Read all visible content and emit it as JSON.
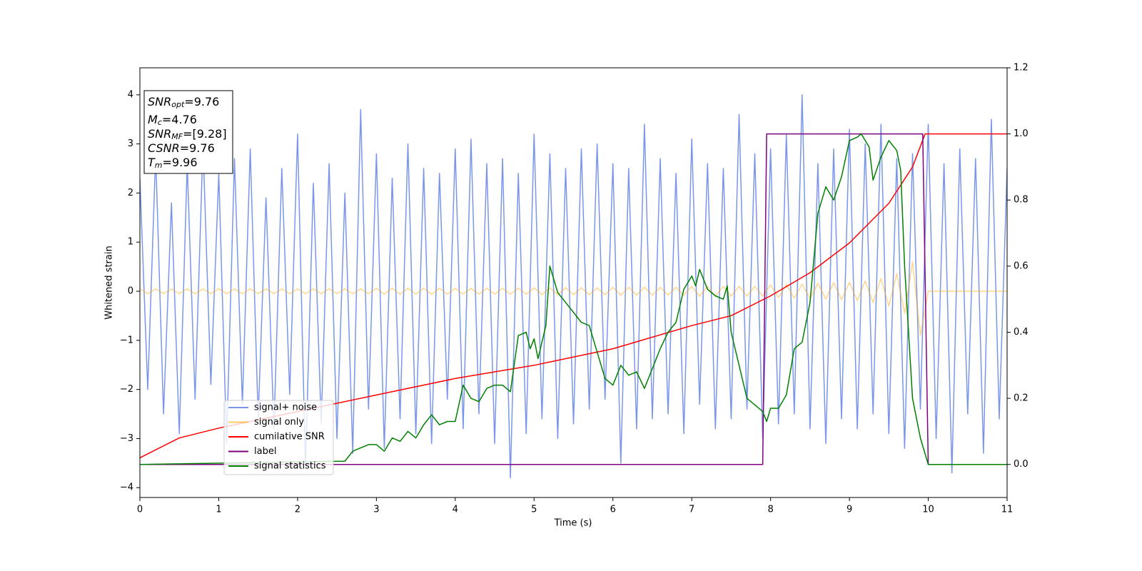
{
  "chart_data": {
    "type": "line",
    "xlabel": "Time (s)",
    "ylabel": "Whitened strain",
    "xlim": [
      0,
      11
    ],
    "ylim": [
      -4.2,
      4.55
    ],
    "y2lim": [
      -0.1,
      1.2
    ],
    "xticks": [
      0,
      1,
      2,
      3,
      4,
      5,
      6,
      7,
      8,
      9,
      10,
      11
    ],
    "yticks": [
      {
        "value": -4,
        "label": "−4"
      },
      {
        "value": -3,
        "label": "−3"
      },
      {
        "value": -2,
        "label": "−2"
      },
      {
        "value": -1,
        "label": "−1"
      },
      0,
      1,
      2,
      3,
      4
    ],
    "y2ticks": [
      {
        "value": 0,
        "label": "0.0"
      },
      {
        "value": 0.2,
        "label": "0.2"
      },
      {
        "value": 0.4,
        "label": "0.4"
      },
      {
        "value": 0.6,
        "label": "0.6"
      },
      {
        "value": 0.8,
        "label": "0.8"
      },
      {
        "value": 1.0,
        "label": "1.0"
      },
      {
        "value": 1.2,
        "label": "1.2"
      }
    ],
    "legend": "lower left",
    "annotation": [
      {
        "main": "SNR",
        "sub": "opt",
        "rest": "=9.76"
      },
      {
        "main": "M",
        "sub": "c",
        "rest": "=4.76"
      },
      {
        "main": "SNR",
        "sub": "MF",
        "rest": "=[9.28]"
      },
      {
        "main": "CSNR",
        "rest": "=9.76"
      },
      {
        "main": "T",
        "sub": "m",
        "rest": "=9.96"
      }
    ],
    "x": [
      0,
      0.1,
      0.2,
      0.3,
      0.4,
      0.5,
      0.6,
      0.7,
      0.8,
      0.9,
      1,
      1.1,
      1.2,
      1.3,
      1.4,
      1.5,
      1.6,
      1.7,
      1.8,
      1.9,
      2,
      2.1,
      2.2,
      2.3,
      2.4,
      2.5,
      2.6,
      2.7,
      2.8,
      2.9,
      3,
      3.1,
      3.2,
      3.3,
      3.4,
      3.5,
      3.6,
      3.7,
      3.8,
      3.9,
      4,
      4.1,
      4.2,
      4.3,
      4.4,
      4.5,
      4.6,
      4.7,
      4.8,
      4.9,
      5,
      5.1,
      5.2,
      5.3,
      5.4,
      5.5,
      5.6,
      5.7,
      5.8,
      5.9,
      6,
      6.1,
      6.2,
      6.3,
      6.4,
      6.5,
      6.6,
      6.7,
      6.8,
      6.9,
      7,
      7.1,
      7.2,
      7.3,
      7.4,
      7.5,
      7.6,
      7.7,
      7.8,
      7.9,
      8,
      8.1,
      8.2,
      8.3,
      8.4,
      8.5,
      8.6,
      8.7,
      8.8,
      8.9,
      9,
      9.1,
      9.2,
      9.3,
      9.4,
      9.5,
      9.6,
      9.7,
      9.8,
      9.9,
      10,
      10.1,
      10.2,
      10.3,
      10.4,
      10.5,
      10.6,
      10.7,
      10.8,
      10.9,
      11
    ],
    "series": [
      {
        "name": "signal+ noise",
        "color": "#4169e1",
        "values": [
          2.3,
          -2.0,
          2.8,
          -2.5,
          1.8,
          -2.9,
          2.6,
          -2.2,
          3.0,
          -1.9,
          2.4,
          -3.1,
          2.7,
          -2.3,
          2.9,
          -2.6,
          1.9,
          -2.8,
          2.5,
          -2.1,
          3.2,
          -3.6,
          2.2,
          -2.7,
          2.6,
          -3.0,
          2.0,
          -3.3,
          3.7,
          -2.4,
          2.8,
          -3.2,
          2.3,
          -2.6,
          3.0,
          -2.9,
          2.5,
          -3.1,
          2.4,
          -2.2,
          2.9,
          -2.8,
          3.1,
          -2.5,
          2.6,
          -3.1,
          2.7,
          -3.8,
          2.4,
          -2.9,
          3.2,
          -2.6,
          2.8,
          -3.0,
          2.5,
          -2.7,
          2.9,
          -2.4,
          3.0,
          -2.2,
          2.6,
          -3.5,
          2.5,
          -2.8,
          3.4,
          -2.6,
          2.7,
          -2.5,
          2.4,
          -2.9,
          3.1,
          -2.3,
          2.6,
          -2.8,
          2.5,
          -2.6,
          3.6,
          -2.4,
          2.8,
          -3.0,
          2.9,
          -2.7,
          3.2,
          -2.5,
          4.0,
          -2.8,
          2.6,
          -3.1,
          2.9,
          -2.6,
          3.3,
          -2.8,
          3.0,
          -2.5,
          3.4,
          -2.9,
          2.7,
          -3.2,
          2.8,
          -2.4,
          3.4,
          -3.0,
          2.6,
          -3.7,
          2.9,
          -2.5,
          2.7,
          -3.3,
          3.5,
          -2.6,
          2.5
        ]
      },
      {
        "name": "signal only",
        "color": "#ffa500",
        "values": [
          0.05,
          -0.05,
          0.05,
          -0.05,
          0.05,
          -0.05,
          0.05,
          -0.05,
          0.05,
          -0.05,
          0.05,
          -0.05,
          0.05,
          -0.05,
          0.05,
          -0.05,
          0.05,
          -0.05,
          0.05,
          -0.05,
          0.05,
          -0.05,
          0.05,
          -0.05,
          0.05,
          -0.05,
          0.05,
          -0.05,
          0.05,
          -0.05,
          0.06,
          -0.06,
          0.06,
          -0.06,
          0.06,
          -0.06,
          0.06,
          -0.06,
          0.06,
          -0.06,
          0.06,
          -0.06,
          0.06,
          -0.06,
          0.06,
          -0.06,
          0.06,
          -0.06,
          0.06,
          -0.06,
          0.07,
          -0.07,
          0.07,
          -0.07,
          0.07,
          -0.07,
          0.07,
          -0.07,
          0.07,
          -0.07,
          0.08,
          -0.08,
          0.08,
          -0.08,
          0.08,
          -0.08,
          0.08,
          -0.08,
          0.08,
          -0.08,
          0.1,
          -0.1,
          0.1,
          -0.1,
          0.1,
          -0.1,
          0.1,
          -0.1,
          0.1,
          -0.1,
          0.13,
          -0.13,
          0.14,
          -0.14,
          0.15,
          -0.15,
          0.16,
          -0.16,
          0.17,
          -0.17,
          0.18,
          -0.19,
          0.21,
          -0.23,
          0.26,
          -0.3,
          0.36,
          -0.45,
          0.6,
          -0.9,
          0,
          0,
          0,
          0,
          0,
          0,
          0,
          0,
          0,
          0,
          0
        ]
      },
      {
        "name": "cumilative SNR",
        "color": "#ff0000",
        "axis": "y2",
        "x": [
          0,
          0.5,
          1,
          2,
          3,
          4,
          5,
          6,
          7,
          7.5,
          8,
          8.5,
          9,
          9.5,
          9.8,
          9.96,
          11
        ],
        "values": [
          0.02,
          0.08,
          0.11,
          0.16,
          0.21,
          0.26,
          0.3,
          0.35,
          0.42,
          0.45,
          0.51,
          0.58,
          0.67,
          0.79,
          0.9,
          1.0,
          1.0
        ]
      },
      {
        "name": "label",
        "color": "#800080",
        "axis": "y2",
        "x": [
          0,
          7.9,
          7.95,
          9.93,
          10.0,
          11
        ],
        "values": [
          0,
          0,
          1,
          1,
          0,
          0
        ]
      },
      {
        "name": "signal statistics",
        "color": "#008000",
        "axis": "y2",
        "x": [
          0,
          2.6,
          2.7,
          2.9,
          3.0,
          3.1,
          3.2,
          3.3,
          3.4,
          3.5,
          3.6,
          3.7,
          3.8,
          3.9,
          4.0,
          4.1,
          4.2,
          4.3,
          4.4,
          4.5,
          4.6,
          4.7,
          4.8,
          4.9,
          4.95,
          5.0,
          5.05,
          5.15,
          5.2,
          5.3,
          5.4,
          5.5,
          5.6,
          5.7,
          5.8,
          5.9,
          6.0,
          6.1,
          6.2,
          6.3,
          6.4,
          6.5,
          6.6,
          6.7,
          6.8,
          6.9,
          7.0,
          7.05,
          7.1,
          7.2,
          7.3,
          7.4,
          7.45,
          7.5,
          7.6,
          7.7,
          7.8,
          7.9,
          7.95,
          8.0,
          8.1,
          8.2,
          8.3,
          8.4,
          8.5,
          8.6,
          8.7,
          8.8,
          8.9,
          9.0,
          9.1,
          9.15,
          9.25,
          9.3,
          9.4,
          9.5,
          9.6,
          9.65,
          9.7,
          9.8,
          9.9,
          10.0,
          11
        ],
        "values": [
          0,
          0.01,
          0.04,
          0.06,
          0.06,
          0.04,
          0.08,
          0.07,
          0.1,
          0.08,
          0.12,
          0.15,
          0.12,
          0.13,
          0.13,
          0.24,
          0.2,
          0.19,
          0.23,
          0.24,
          0.24,
          0.22,
          0.39,
          0.4,
          0.35,
          0.38,
          0.32,
          0.42,
          0.6,
          0.52,
          0.49,
          0.46,
          0.43,
          0.42,
          0.34,
          0.26,
          0.24,
          0.3,
          0.27,
          0.28,
          0.23,
          0.29,
          0.35,
          0.4,
          0.43,
          0.53,
          0.57,
          0.54,
          0.59,
          0.53,
          0.51,
          0.5,
          0.54,
          0.4,
          0.3,
          0.2,
          0.18,
          0.16,
          0.13,
          0.17,
          0.17,
          0.21,
          0.35,
          0.37,
          0.49,
          0.76,
          0.84,
          0.8,
          0.87,
          0.98,
          0.99,
          1.0,
          0.96,
          0.86,
          0.93,
          0.98,
          0.95,
          0.89,
          0.6,
          0.2,
          0.08,
          0.0,
          0.0
        ]
      }
    ]
  }
}
